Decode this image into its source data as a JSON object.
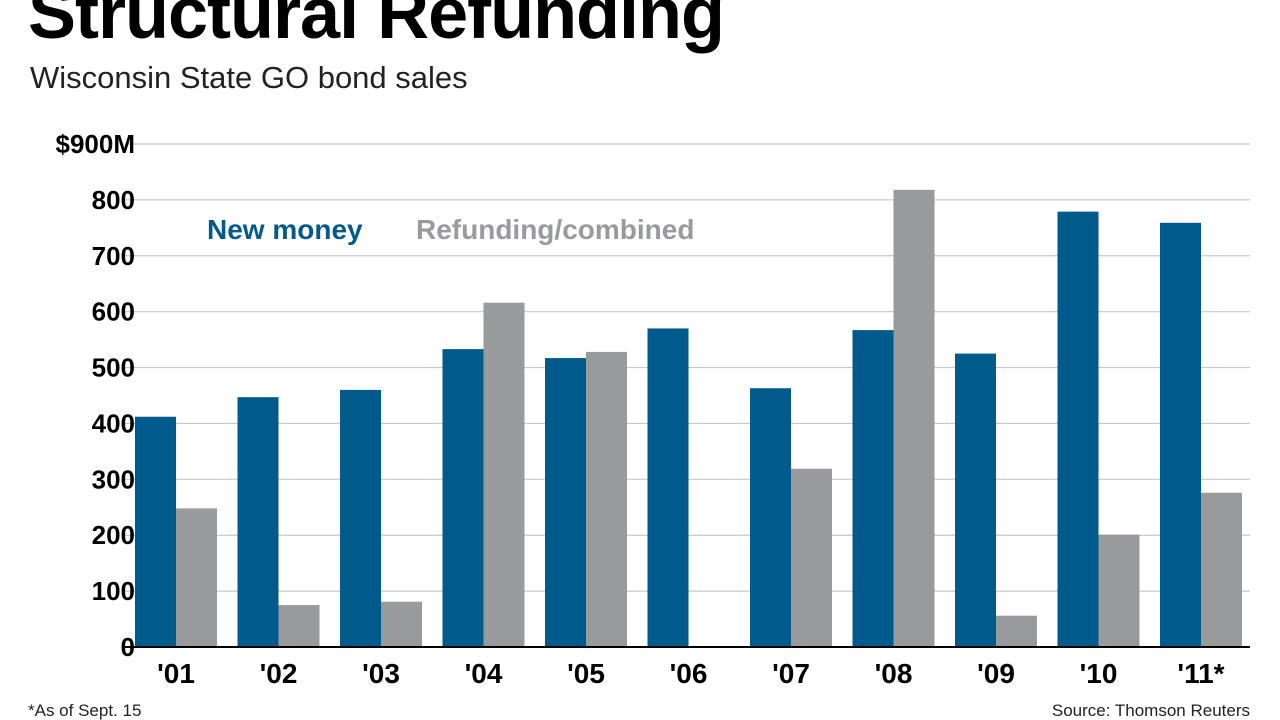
{
  "chart_data": {
    "type": "bar",
    "title": "Structural Refunding",
    "subtitle": "Wisconsin State GO bond sales",
    "categories": [
      "'01",
      "'02",
      "'03",
      "'04",
      "'05",
      "'06",
      "'07",
      "'08",
      "'09",
      "'10",
      "'11*"
    ],
    "series": [
      {
        "name": "New money",
        "color": "#005a8c",
        "values": [
          412,
          447,
          460,
          533,
          517,
          570,
          463,
          567,
          525,
          779,
          759
        ]
      },
      {
        "name": "Refunding/combined",
        "color": "#999a9c",
        "values": [
          248,
          75,
          81,
          616,
          528,
          0,
          319,
          818,
          56,
          201,
          276
        ]
      }
    ],
    "yticks": [
      "$900M",
      "800",
      "700",
      "600",
      "500",
      "400",
      "300",
      "200",
      "100",
      "0"
    ],
    "ylim": [
      0,
      900
    ],
    "grid": true,
    "legend_position": "top-left",
    "footnote": "*As of Sept. 15",
    "source": "Source: Thomson Reuters"
  }
}
